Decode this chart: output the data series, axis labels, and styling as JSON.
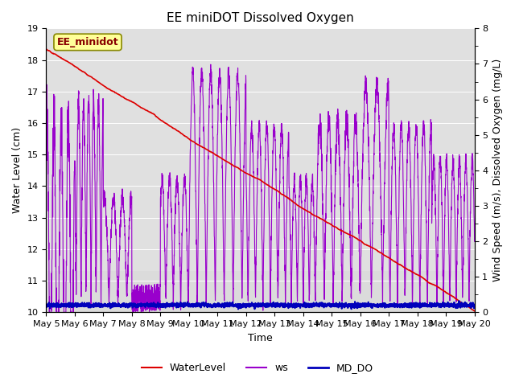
{
  "title": "EE miniDOT Dissolved Oxygen",
  "xlabel": "Time",
  "ylabel_left": "Water Level (cm)",
  "ylabel_right": "Wind Speed (m/s), Dissolved Oxygen (mg/L)",
  "ylim_left": [
    10.0,
    19.0
  ],
  "ylim_right": [
    0.0,
    8.0
  ],
  "yticks_left": [
    10.0,
    11.0,
    12.0,
    13.0,
    14.0,
    15.0,
    16.0,
    17.0,
    18.0,
    19.0
  ],
  "yticks_right": [
    0.0,
    1.0,
    2.0,
    3.0,
    4.0,
    5.0,
    6.0,
    7.0,
    8.0
  ],
  "xtick_labels": [
    "May 5",
    "May 6",
    "May 7",
    "May 8",
    "May 9",
    "May 10",
    "May 11",
    "May 12",
    "May 13",
    "May 14",
    "May 15",
    "May 16",
    "May 17",
    "May 18",
    "May 19",
    "May 20"
  ],
  "xtick_positions": [
    0,
    1,
    2,
    3,
    4,
    5,
    6,
    7,
    8,
    9,
    10,
    11,
    12,
    13,
    14,
    15
  ],
  "water_level_color": "#DD0000",
  "ws_color": "#9900CC",
  "md_do_color": "#0000BB",
  "water_level_linewidth": 1.2,
  "ws_linewidth": 0.8,
  "md_do_linewidth": 1.5,
  "legend_labels": [
    "WaterLevel",
    "ws",
    "MD_DO"
  ],
  "annotation_text": "EE_minidot",
  "annotation_bg": "#FFFF99",
  "annotation_border": "#888800",
  "plot_bg": "#e8e8e8",
  "gray_band_facecolor": "#d0d0d0",
  "grid_color": "#ffffff",
  "title_fontsize": 11,
  "axis_label_fontsize": 9,
  "tick_fontsize": 8
}
